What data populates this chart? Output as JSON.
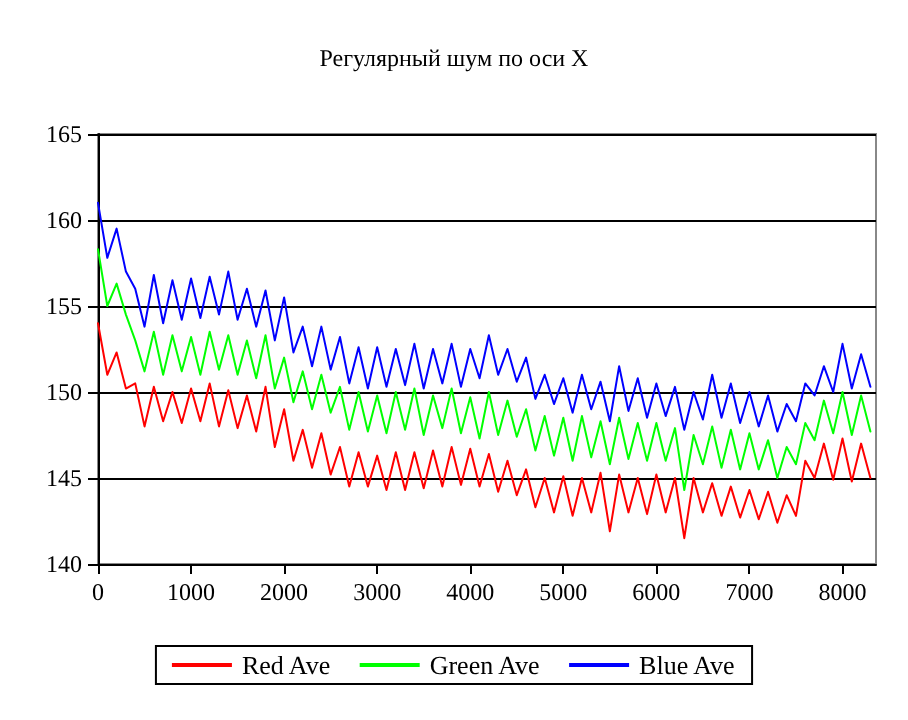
{
  "chart_data": {
    "type": "line",
    "title": "Регулярный шум по оси X",
    "x": [
      0,
      100,
      200,
      300,
      400,
      500,
      600,
      700,
      800,
      900,
      1000,
      1100,
      1200,
      1300,
      1400,
      1500,
      1600,
      1700,
      1800,
      1900,
      2000,
      2100,
      2200,
      2300,
      2400,
      2500,
      2600,
      2700,
      2800,
      2900,
      3000,
      3100,
      3200,
      3300,
      3400,
      3500,
      3600,
      3700,
      3800,
      3900,
      4000,
      4100,
      4200,
      4300,
      4400,
      4500,
      4600,
      4700,
      4800,
      4900,
      5000,
      5100,
      5200,
      5300,
      5400,
      5500,
      5600,
      5700,
      5800,
      5900,
      6000,
      6100,
      6200,
      6300,
      6400,
      6500,
      6600,
      6700,
      6800,
      6900,
      7000,
      7100,
      7200,
      7300,
      7400,
      7500,
      7600,
      7700,
      7800,
      7900,
      8000,
      8100,
      8200,
      8300
    ],
    "series": [
      {
        "name": "Red Ave",
        "color": "#ff0000",
        "values": [
          154,
          151,
          152.3,
          150.2,
          150.5,
          148,
          150.3,
          148.3,
          150,
          148.2,
          150.2,
          148.3,
          150.5,
          148,
          150.1,
          147.9,
          149.8,
          147.7,
          150.3,
          146.8,
          149,
          146,
          147.8,
          145.6,
          147.6,
          145.2,
          146.8,
          144.5,
          146.5,
          144.5,
          146.3,
          144.3,
          146.5,
          144.3,
          146.5,
          144.4,
          146.6,
          144.5,
          146.8,
          144.6,
          146.7,
          144.5,
          146.4,
          144.2,
          146,
          144,
          145.5,
          143.3,
          145,
          143,
          145.1,
          142.8,
          145,
          143,
          145.3,
          141.9,
          145.2,
          143,
          145,
          142.9,
          145.2,
          143,
          145,
          141.5,
          145,
          143,
          144.7,
          142.8,
          144.5,
          142.7,
          144.3,
          142.6,
          144.2,
          142.4,
          144,
          142.8,
          146,
          145,
          147,
          144.9,
          147.3,
          144.8,
          147,
          145
        ]
      },
      {
        "name": "Green Ave",
        "color": "#00ff00",
        "values": [
          158.3,
          155,
          156.3,
          154.5,
          153,
          151.2,
          153.5,
          151,
          153.3,
          151.2,
          153.2,
          151,
          153.5,
          151.3,
          153.3,
          151,
          153,
          150.8,
          153.3,
          150.2,
          152,
          149.4,
          151.2,
          149,
          151,
          148.8,
          150.3,
          147.8,
          150,
          147.7,
          149.8,
          147.6,
          150,
          147.8,
          150.2,
          147.5,
          149.8,
          147.9,
          150.2,
          147.6,
          149.7,
          147.3,
          150,
          147.5,
          149.5,
          147.4,
          149,
          146.6,
          148.6,
          146.3,
          148.5,
          146,
          148.6,
          146.2,
          148.3,
          145.8,
          148.5,
          146.1,
          148.2,
          146,
          148.2,
          146,
          147.9,
          144.3,
          147.5,
          145.8,
          148,
          145.6,
          147.8,
          145.5,
          147.6,
          145.5,
          147.2,
          145,
          146.8,
          145.8,
          148.2,
          147.2,
          149.5,
          147.6,
          150,
          147.5,
          149.8,
          147.7
        ]
      },
      {
        "name": "Blue Ave",
        "color": "#0000ff",
        "values": [
          161,
          157.8,
          159.5,
          157,
          156,
          153.8,
          156.8,
          154,
          156.5,
          154.2,
          156.6,
          154.3,
          156.7,
          154.5,
          157,
          154.2,
          156,
          153.8,
          155.9,
          153,
          155.5,
          152.3,
          153.8,
          151.5,
          153.8,
          151.3,
          153.2,
          150.5,
          152.6,
          150.2,
          152.6,
          150.3,
          152.5,
          150.4,
          152.8,
          150.2,
          152.5,
          150.5,
          152.8,
          150.3,
          152.5,
          150.8,
          153.3,
          151,
          152.5,
          150.6,
          152,
          149.6,
          151,
          149.3,
          150.8,
          148.8,
          151,
          149,
          150.6,
          148.3,
          151.5,
          148.9,
          150.8,
          148.5,
          150.5,
          148.6,
          150.3,
          147.8,
          150,
          148.4,
          151,
          148.5,
          150.5,
          148.2,
          150,
          148,
          149.8,
          147.7,
          149.3,
          148.3,
          150.5,
          149.8,
          151.5,
          150,
          152.8,
          150.2,
          152.2,
          150.3
        ]
      }
    ],
    "xlim": [
      0,
      8360
    ],
    "xticks": [
      0,
      1000,
      2000,
      3000,
      4000,
      5000,
      6000,
      7000,
      8000
    ],
    "ylim": [
      140,
      165
    ],
    "yticks": [
      140,
      145,
      150,
      155,
      160,
      165
    ],
    "grid": "y",
    "legend": "bottom",
    "marker": "none",
    "line_style": "solid"
  }
}
